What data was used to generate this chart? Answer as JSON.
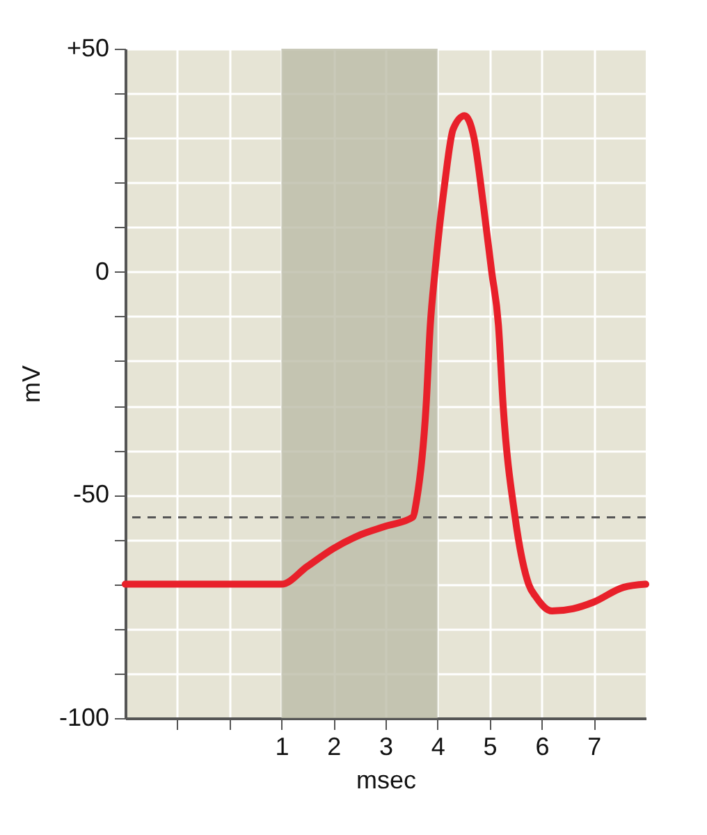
{
  "chart_data": {
    "type": "line",
    "xlabel": "msec",
    "ylabel": "mV",
    "x": [
      -2,
      1,
      1.5,
      2,
      2.5,
      3,
      3.52,
      3.6,
      3.78,
      3.86,
      3.95,
      4.14,
      4.3,
      4.52,
      4.7,
      4.88,
      5.04,
      5.17,
      5.26,
      5.49,
      5.75,
      5.9,
      6.2,
      6.6,
      7,
      7.57,
      8
    ],
    "series": [
      {
        "color": "#e8202a",
        "values": [
          -70,
          -70,
          -66,
          -62,
          -59,
          -57,
          -55,
          -51,
          -30,
          -12,
          0,
          20,
          32,
          35,
          30,
          15,
          0,
          -12,
          -30,
          -55,
          -70,
          -73,
          -76,
          -75.5,
          -74,
          -70.7,
          -70
        ]
      }
    ],
    "xlim": [
      -2,
      8
    ],
    "ylim": [
      -100,
      50
    ],
    "xticks": [
      {
        "value": -1,
        "label": null
      },
      {
        "value": 0,
        "label": null
      },
      1,
      2,
      3,
      4,
      5,
      6,
      7
    ],
    "yticks": [
      -100,
      {
        "value": -90,
        "label": null
      },
      {
        "value": -80,
        "label": null
      },
      {
        "value": -70,
        "label": null
      },
      {
        "value": -60,
        "label": null
      },
      -50,
      {
        "value": -40,
        "label": null
      },
      {
        "value": -30,
        "label": null
      },
      {
        "value": -20,
        "label": null
      },
      {
        "value": -10,
        "label": null
      },
      0,
      {
        "value": 10,
        "label": null
      },
      {
        "value": 20,
        "label": null
      },
      {
        "value": 30,
        "label": null
      },
      {
        "value": 40,
        "label": null
      },
      {
        "value": 50,
        "label": "+50"
      }
    ],
    "grid": true,
    "line_style": "solid",
    "marker": "none",
    "bands": [
      {
        "axis": "x",
        "from": 1,
        "to": 4,
        "color": "#bcbba8"
      }
    ],
    "ref_lines": [
      {
        "axis": "y",
        "value": -55,
        "color": "#555555",
        "line_style": "dashed"
      }
    ]
  }
}
